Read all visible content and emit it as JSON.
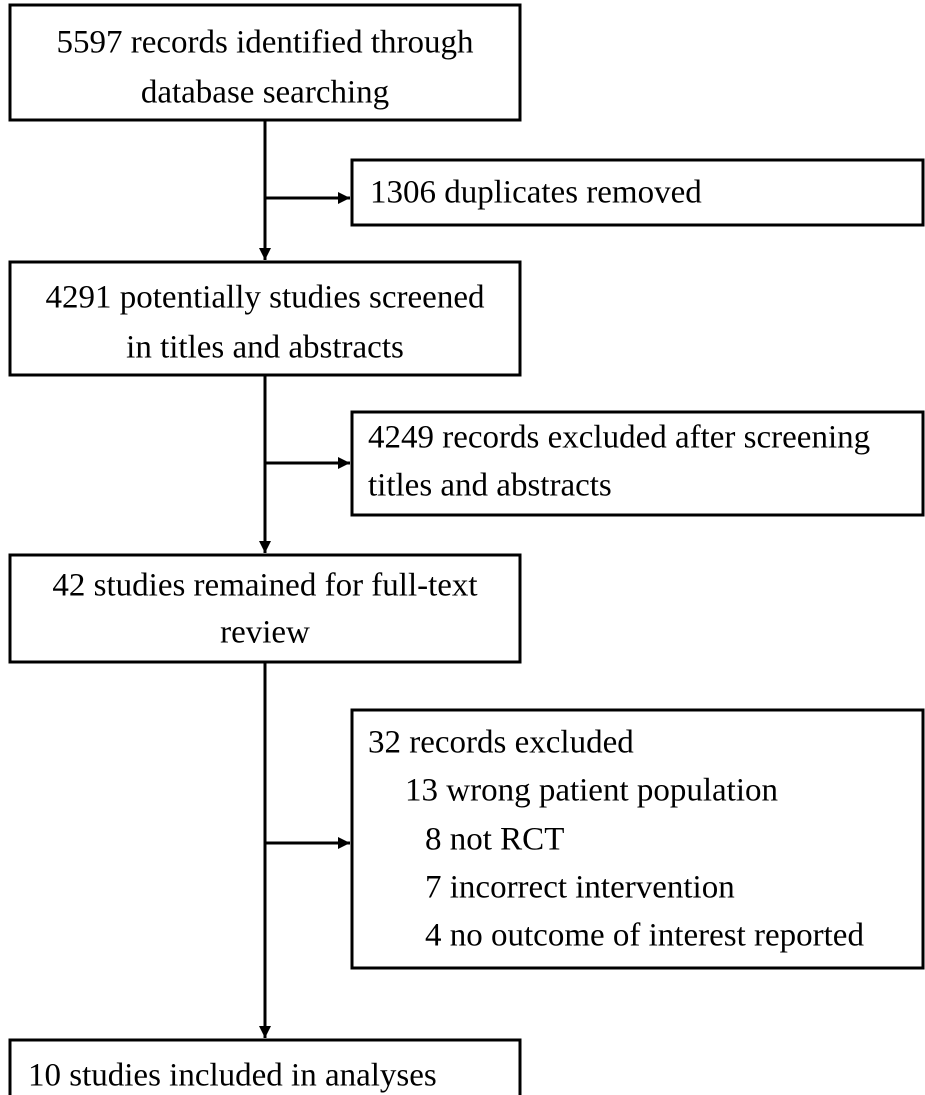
{
  "nodes": [
    {
      "lines": [
        "5597 records identified through",
        "database searching"
      ]
    },
    {
      "lines": [
        "1306 duplicates removed"
      ]
    },
    {
      "lines": [
        "4291 potentially studies screened",
        "in titles and abstracts"
      ]
    },
    {
      "lines": [
        "4249 records excluded after screening",
        "titles and abstracts"
      ]
    },
    {
      "lines": [
        "42 studies remained for full-text",
        "review"
      ]
    },
    {
      "lines": [
        "32 records excluded",
        "13 wrong patient population",
        "8 not RCT",
        "7 incorrect intervention",
        "4 no outcome of interest reported"
      ]
    },
    {
      "lines": [
        "10 studies included in analyses"
      ]
    }
  ]
}
